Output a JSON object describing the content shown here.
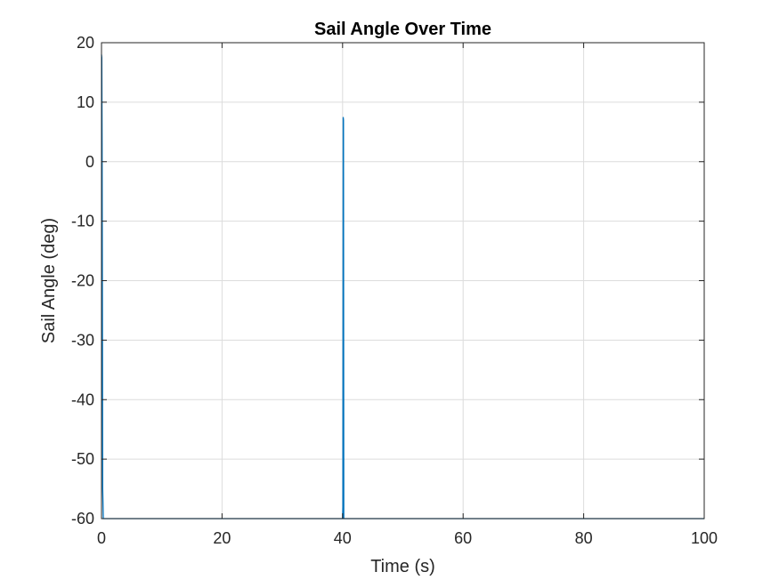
{
  "chart_data": {
    "type": "line",
    "title": "Sail Angle Over Time",
    "xlabel": "Time (s)",
    "ylabel": "Sail Angle (deg)",
    "xlim": [
      0,
      100
    ],
    "ylim": [
      -60,
      20
    ],
    "xticks": [
      0,
      20,
      40,
      60,
      80,
      100
    ],
    "yticks": [
      -60,
      -50,
      -40,
      -30,
      -20,
      -10,
      0,
      10,
      20
    ],
    "grid": true,
    "line_color": "#0072BD",
    "series": [
      {
        "x": [
          0,
          0.05,
          0.1,
          0.15,
          0.2,
          0.3,
          0.4,
          40,
          40.05,
          40.1,
          40.15,
          40.2,
          40.3,
          100
        ],
        "y": [
          18,
          17.5,
          3,
          -25,
          -55,
          -60,
          -60,
          -60,
          -58,
          7.5,
          7,
          -60,
          -60,
          -60
        ]
      }
    ]
  }
}
